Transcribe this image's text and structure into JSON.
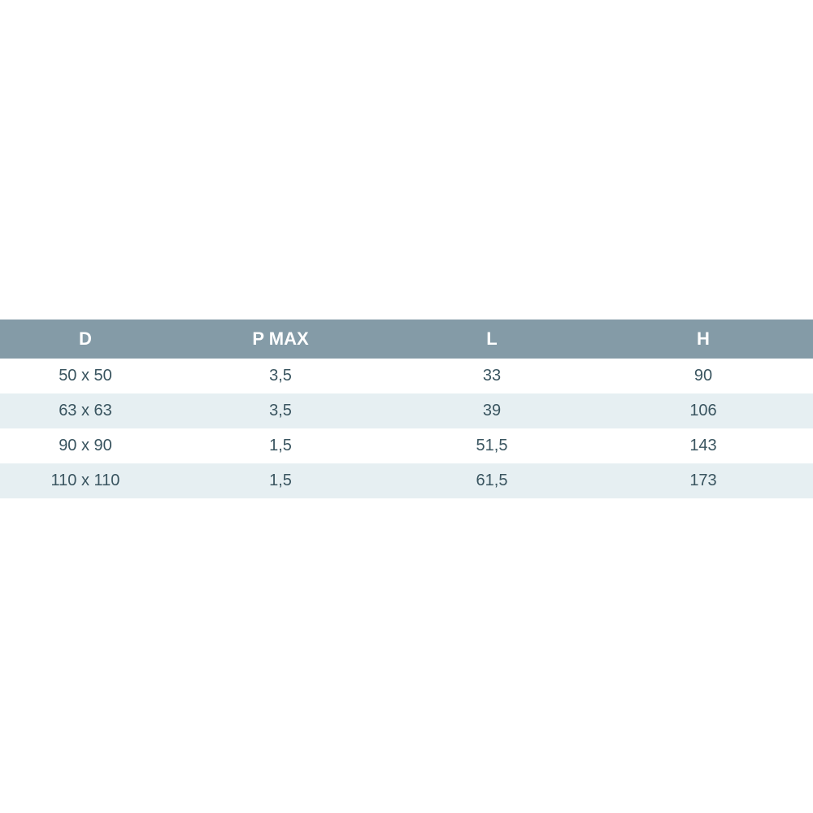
{
  "table": {
    "type": "table",
    "header_bg_color": "#849ba7",
    "header_text_color": "#ffffff",
    "row_odd_bg_color": "#ffffff",
    "row_even_bg_color": "#e6eff2",
    "body_text_color": "#3a5560",
    "header_fontsize": 22,
    "body_fontsize": 20,
    "header_font_weight": "bold",
    "columns": [
      {
        "key": "d",
        "label": "D"
      },
      {
        "key": "pmax",
        "label": "P MAX"
      },
      {
        "key": "l",
        "label": "L"
      },
      {
        "key": "h",
        "label": "H"
      }
    ],
    "rows": [
      {
        "d": "50 x 50",
        "pmax": "3,5",
        "l": "33",
        "h": "90"
      },
      {
        "d": "63 x 63",
        "pmax": "3,5",
        "l": "39",
        "h": "106"
      },
      {
        "d": "90 x 90",
        "pmax": "1,5",
        "l": "51,5",
        "h": "143"
      },
      {
        "d": "110 x 110",
        "pmax": "1,5",
        "l": "61,5",
        "h": "173"
      }
    ]
  }
}
